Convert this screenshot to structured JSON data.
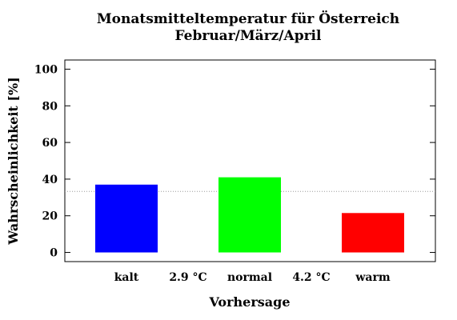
{
  "chart_data": {
    "type": "bar",
    "title": "Monatsmitteltemperatur für Österreich",
    "subtitle": "Februar/März/April",
    "xlabel": "Vorhersage",
    "ylabel": "Wahrscheinlichkeit [%]",
    "ylim": [
      -5,
      105
    ],
    "yticks": [
      0,
      20,
      40,
      60,
      80,
      100
    ],
    "ytick_labels": [
      "0",
      "20",
      "40",
      "60",
      "80",
      "100"
    ],
    "categories": [
      "kalt",
      "normal",
      "warm"
    ],
    "values": [
      37,
      41,
      21.5
    ],
    "colors": [
      "#0000ff",
      "#00ff00",
      "#ff0000"
    ],
    "threshold_labels": [
      "2.9 °C",
      "4.2 °C"
    ],
    "reference_line": 33.3,
    "grid": false
  }
}
